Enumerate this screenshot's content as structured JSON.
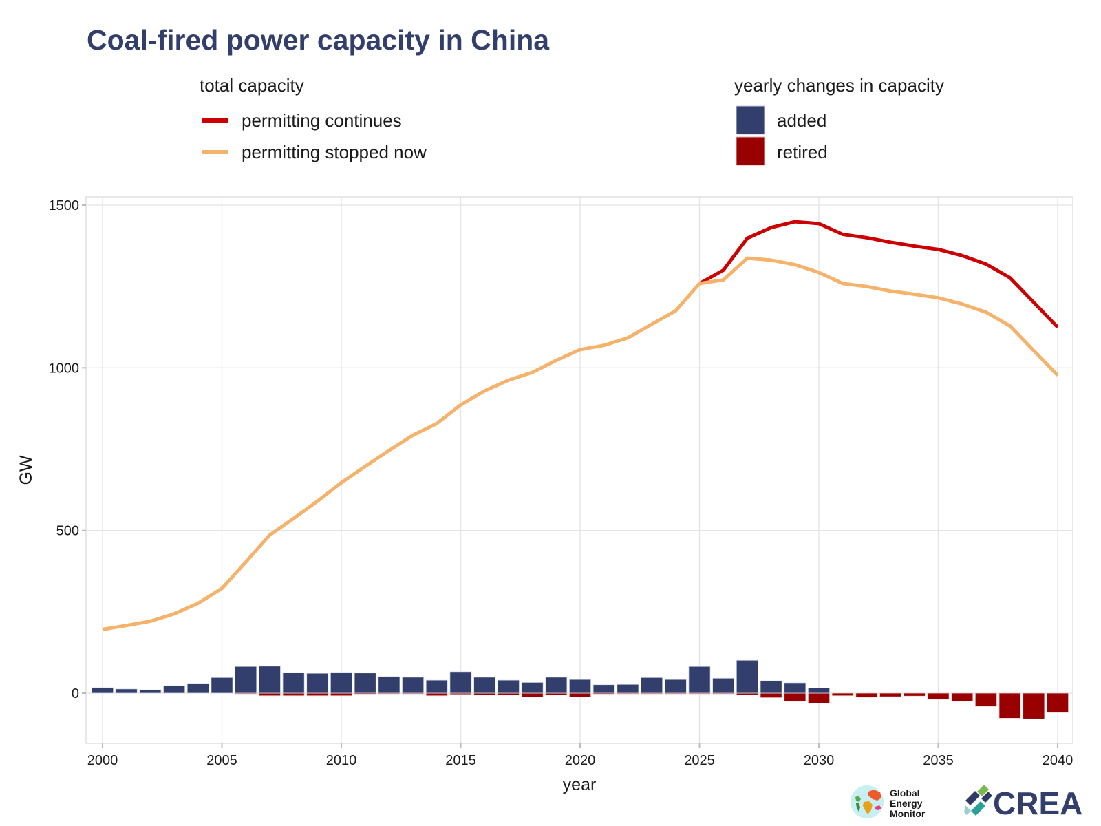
{
  "chart_data": {
    "type": "line",
    "title": "Coal-fired power capacity in China",
    "xlabel": "year",
    "ylabel": "GW",
    "xlim": [
      2000,
      2040
    ],
    "ylim": [
      -150,
      1530
    ],
    "grid": true,
    "x_ticks": [
      2000,
      2005,
      2010,
      2015,
      2020,
      2025,
      2030,
      2035,
      2040
    ],
    "y_ticks": [
      0,
      500,
      1000,
      1500
    ],
    "x_tick_labels": [
      "2000",
      "2005",
      "2010",
      "2015",
      "2020",
      "2025",
      "2030",
      "2035",
      "2040"
    ],
    "y_tick_labels": [
      "0",
      "500",
      "1000",
      "1500"
    ],
    "legends": [
      {
        "title": "total capacity",
        "placement": "top-left",
        "entries": [
          {
            "label": "permitting continues",
            "color": "#cc0000",
            "key": "line"
          },
          {
            "label": "permitting stopped now",
            "color": "#f5b26b",
            "key": "line"
          }
        ]
      },
      {
        "title": "yearly changes in capacity",
        "placement": "top-right",
        "entries": [
          {
            "label": "added",
            "color": "#323e6b",
            "key": "box"
          },
          {
            "label": "retired",
            "color": "#990000",
            "key": "box"
          }
        ]
      }
    ],
    "x": [
      2000,
      2001,
      2002,
      2003,
      2004,
      2005,
      2006,
      2007,
      2008,
      2009,
      2010,
      2011,
      2012,
      2013,
      2014,
      2015,
      2016,
      2017,
      2018,
      2019,
      2020,
      2021,
      2022,
      2023,
      2024,
      2025,
      2026,
      2027,
      2028,
      2029,
      2030,
      2031,
      2032,
      2033,
      2034,
      2035,
      2036,
      2037,
      2038,
      2039,
      2040
    ],
    "series": [
      {
        "name": "permitting stopped now",
        "type": "line",
        "color": "#f5b26b",
        "values": [
          196,
          208,
          221,
          244,
          276,
          322,
          403,
          486,
          537,
          590,
          647,
          697,
          746,
          793,
          829,
          886,
          929,
          962,
          986,
          1023,
          1056,
          1069,
          1092,
          1134,
          1175,
          1259,
          1270,
          1337,
          1331,
          1317,
          1293,
          1259,
          1250,
          1236,
          1226,
          1215,
          1196,
          1171,
          1129,
          1053,
          977
        ]
      },
      {
        "name": "permitting continues",
        "type": "line",
        "color": "#cc0000",
        "x_start": 2025,
        "values": [
          1259,
          1300,
          1398,
          1431,
          1449,
          1443,
          1410,
          1400,
          1386,
          1374,
          1364,
          1345,
          1319,
          1277,
          1201,
          1125
        ]
      },
      {
        "name": "added",
        "type": "bar",
        "color": "#323e6b",
        "values": [
          17,
          13,
          10,
          23,
          30,
          48,
          82,
          83,
          63,
          61,
          64,
          62,
          51,
          49,
          40,
          66,
          49,
          40,
          33,
          49,
          42,
          26,
          27,
          48,
          42,
          82,
          46,
          101,
          38,
          32,
          16,
          0,
          0,
          0,
          0,
          0,
          0,
          0,
          0,
          0,
          0
        ]
      },
      {
        "name": "retired",
        "type": "bar",
        "color": "#990000",
        "values": [
          0,
          0,
          0,
          0,
          0,
          0,
          -1,
          -8,
          -8,
          -8,
          -8,
          -3,
          -2,
          -2,
          -8,
          -4,
          -6,
          -6,
          -12,
          -6,
          -12,
          -3,
          -2,
          -1,
          -1,
          -1,
          -2,
          -5,
          -14,
          -25,
          -31,
          -8,
          -13,
          -11,
          -9,
          -19,
          -25,
          -41,
          -77,
          -79,
          -60
        ]
      }
    ]
  },
  "logos": {
    "gem_lines": [
      "Global",
      "Energy",
      "Monitor"
    ],
    "crea": "CREA"
  }
}
